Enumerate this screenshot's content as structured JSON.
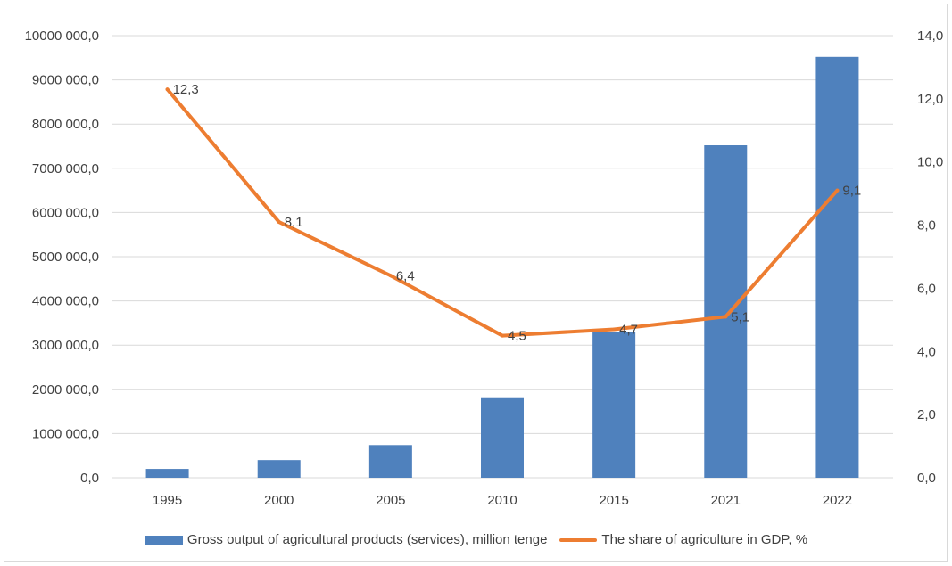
{
  "colors": {
    "bar": "#4f81bd",
    "line": "#ed7d31",
    "grid": "#d9d9d9",
    "text": "#404040"
  },
  "chart_data": {
    "type": "bar",
    "title": "",
    "categories": [
      "1995",
      "2000",
      "2005",
      "2010",
      "2015",
      "2021",
      "2022"
    ],
    "series": [
      {
        "name": "Gross output of agricultural products (services), million tenge",
        "type": "bar",
        "axis": "left",
        "values": [
          200000,
          400000,
          740000,
          1820000,
          3300000,
          7520000,
          9520000
        ]
      },
      {
        "name": "The share of agriculture in GDP, %",
        "type": "line",
        "axis": "right",
        "values": [
          12.3,
          8.1,
          6.4,
          4.5,
          4.7,
          5.1,
          9.1
        ],
        "data_labels": [
          "12,3",
          "8,1",
          "6,4",
          "4,5",
          "4,7",
          "5,1",
          "9,1"
        ]
      }
    ],
    "y_left": {
      "ylim": [
        0,
        10000000
      ],
      "tick_labels": [
        "0,0",
        "1000 000,0",
        "2000 000,0",
        "3000 000,0",
        "4000 000,0",
        "5000 000,0",
        "6000 000,0",
        "7000 000,0",
        "8000 000,0",
        "9000 000,0",
        "10000 000,0"
      ]
    },
    "y_right": {
      "ylim": [
        0,
        14
      ],
      "tick_labels": [
        "0,0",
        "2,0",
        "4,0",
        "6,0",
        "8,0",
        "10,0",
        "12,0",
        "14,0"
      ]
    },
    "grid": true,
    "legend_position": "bottom"
  }
}
